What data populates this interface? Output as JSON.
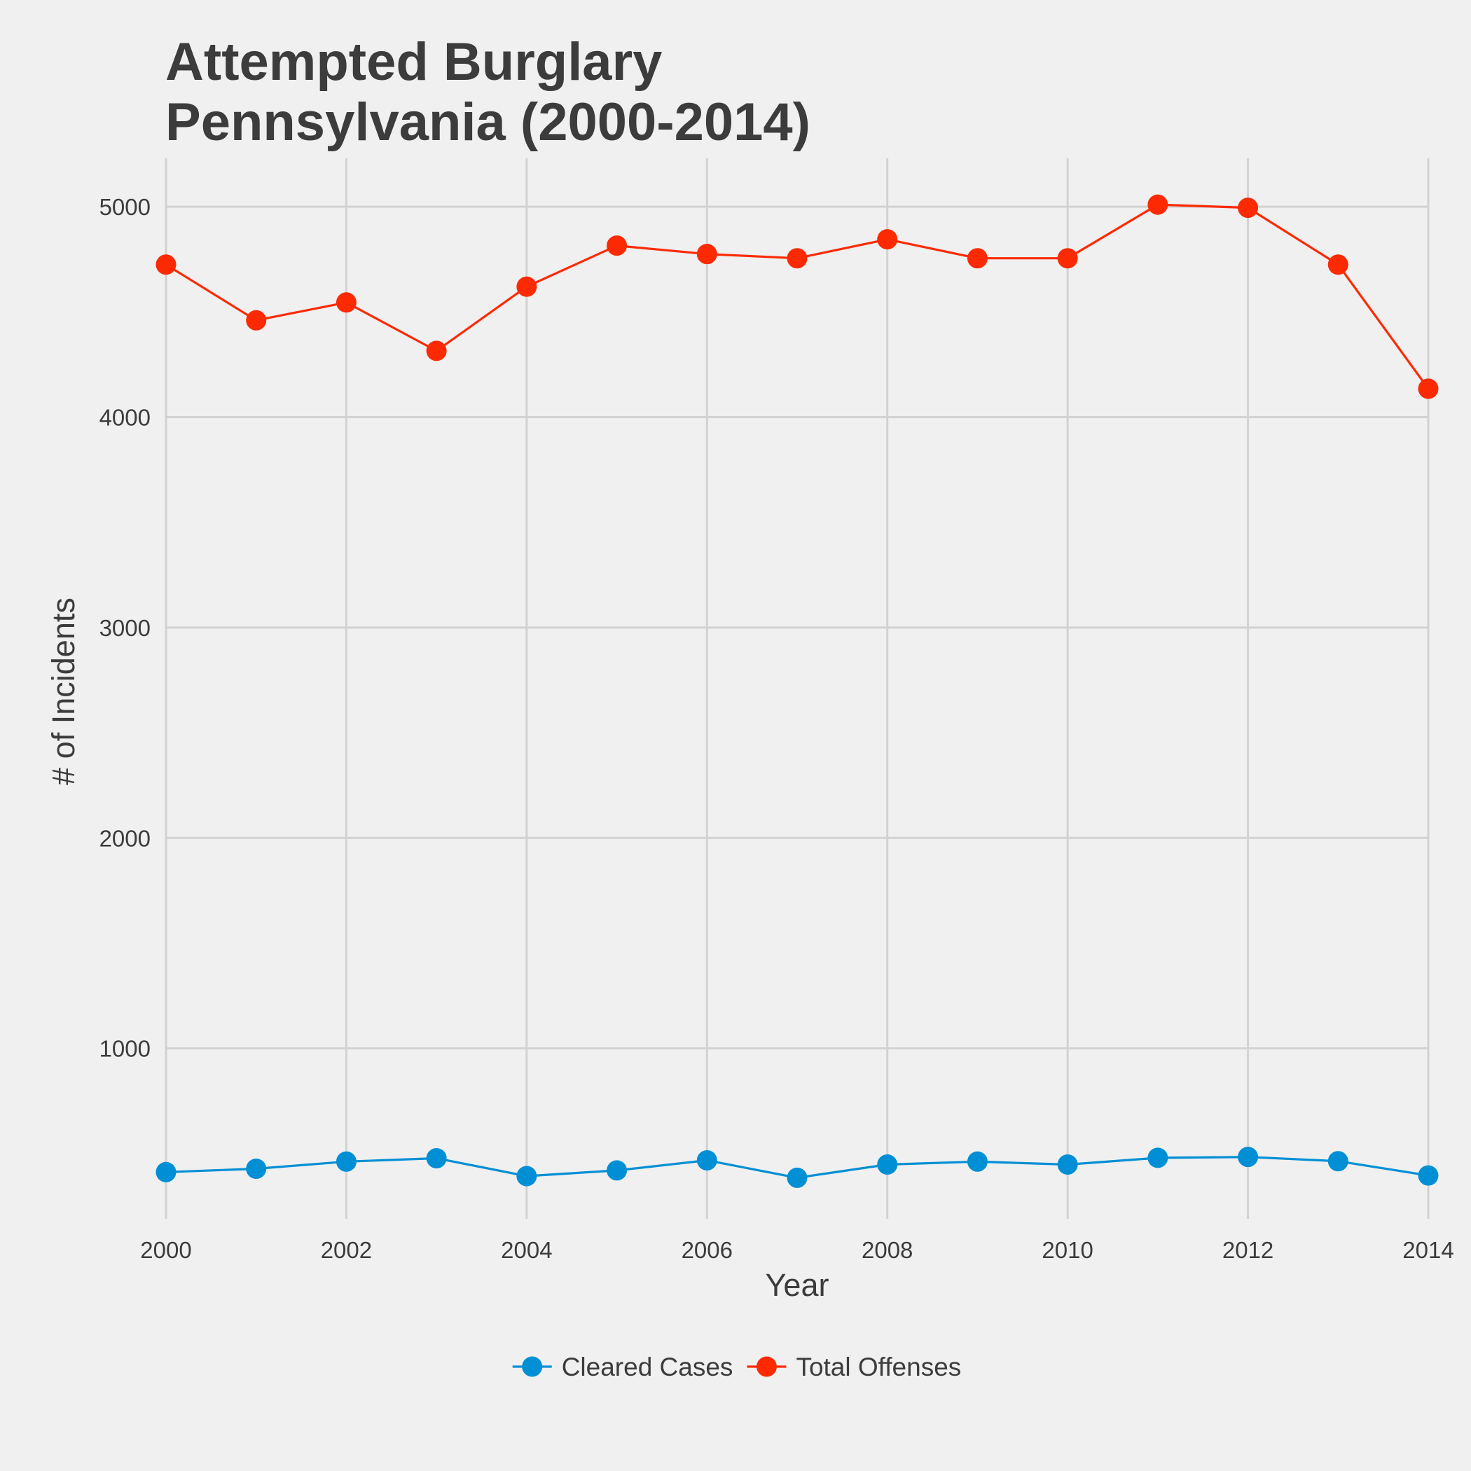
{
  "chart_data": {
    "type": "line",
    "title_lines": [
      "Attempted Burglary",
      "Pennsylvania (2000-2014)"
    ],
    "xlabel": "Year",
    "ylabel": "# of Incidents",
    "x": [
      2000,
      2001,
      2002,
      2003,
      2004,
      2005,
      2006,
      2007,
      2008,
      2009,
      2010,
      2011,
      2012,
      2013,
      2014
    ],
    "x_ticks": [
      2000,
      2002,
      2004,
      2006,
      2008,
      2010,
      2012,
      2014
    ],
    "y_ticks": [
      1000,
      2000,
      3000,
      4000,
      5000
    ],
    "xlim": [
      2000,
      2014
    ],
    "ylim": [
      190,
      5230
    ],
    "grid": true,
    "legend_position": "bottom",
    "series": [
      {
        "name": "Cleared Cases",
        "color": "#008fd5",
        "values": [
          412,
          428,
          462,
          478,
          393,
          420,
          468,
          385,
          448,
          462,
          448,
          480,
          484,
          464,
          396
        ]
      },
      {
        "name": "Total Offenses",
        "color": "#fc2a03",
        "values": [
          4725,
          4460,
          4545,
          4315,
          4620,
          4815,
          4775,
          4755,
          4845,
          4755,
          4755,
          5010,
          4995,
          4725,
          4135
        ]
      }
    ]
  }
}
